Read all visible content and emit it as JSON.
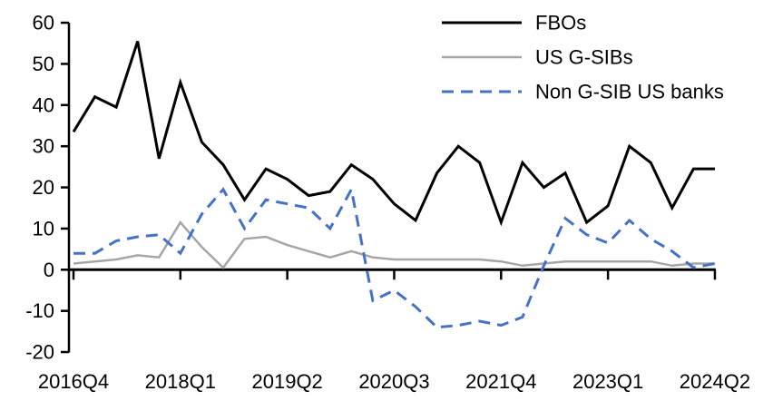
{
  "chart_data": {
    "type": "line",
    "categories": [
      "2016Q4",
      "2017Q1",
      "2017Q2",
      "2017Q3",
      "2017Q4",
      "2018Q1",
      "2018Q2",
      "2018Q3",
      "2018Q4",
      "2019Q1",
      "2019Q2",
      "2019Q3",
      "2019Q4",
      "2020Q1",
      "2020Q2",
      "2020Q3",
      "2020Q4",
      "2021Q1",
      "2021Q2",
      "2021Q3",
      "2021Q4",
      "2022Q1",
      "2022Q2",
      "2022Q3",
      "2022Q4",
      "2023Q1",
      "2023Q2",
      "2023Q3",
      "2023Q4",
      "2024Q1",
      "2024Q2"
    ],
    "x_tick_labels": [
      "2016Q4",
      "2018Q1",
      "2019Q2",
      "2020Q3",
      "2021Q4",
      "2023Q1",
      "2024Q2"
    ],
    "y_ticks": [
      60,
      50,
      40,
      30,
      20,
      10,
      0,
      -10,
      -20
    ],
    "ylim": [
      -20,
      60
    ],
    "grid": false,
    "legend_position": "top-right",
    "series": [
      {
        "name": "FBOs",
        "color": "#000000",
        "style": "solid",
        "values": [
          33.5,
          42,
          39.5,
          55.5,
          27,
          45.5,
          31,
          25.5,
          17,
          24.5,
          22,
          18,
          19,
          25.5,
          22,
          16,
          12,
          23.5,
          30,
          26,
          11.5,
          26,
          20,
          23.5,
          11.5,
          15.5,
          30,
          26,
          15,
          24.5,
          24.5
        ]
      },
      {
        "name": "US G-SIBs",
        "color": "#a6a6a6",
        "style": "solid",
        "values": [
          1.5,
          2,
          2.5,
          3.5,
          3,
          11.5,
          5.5,
          0.5,
          7.5,
          8,
          6,
          4.5,
          3,
          4.5,
          3,
          2.5,
          2.5,
          2.5,
          2.5,
          2.5,
          2,
          1,
          1.5,
          2,
          2,
          2,
          2,
          2,
          1,
          1.5,
          1.5
        ]
      },
      {
        "name": "Non G-SIB US banks",
        "color": "#4472c4",
        "style": "dashed",
        "values": [
          4,
          4,
          7,
          8,
          8.5,
          4,
          13.5,
          19.5,
          10,
          17,
          16,
          15,
          10,
          19.5,
          -7.5,
          -5,
          -9,
          -14,
          -13.5,
          -12.5,
          -13.5,
          -11.5,
          1,
          12.5,
          8.5,
          6.5,
          12,
          7.5,
          4.5,
          0.5,
          1.5
        ]
      }
    ],
    "axis_color": "#000000",
    "background_color": "#ffffff"
  }
}
